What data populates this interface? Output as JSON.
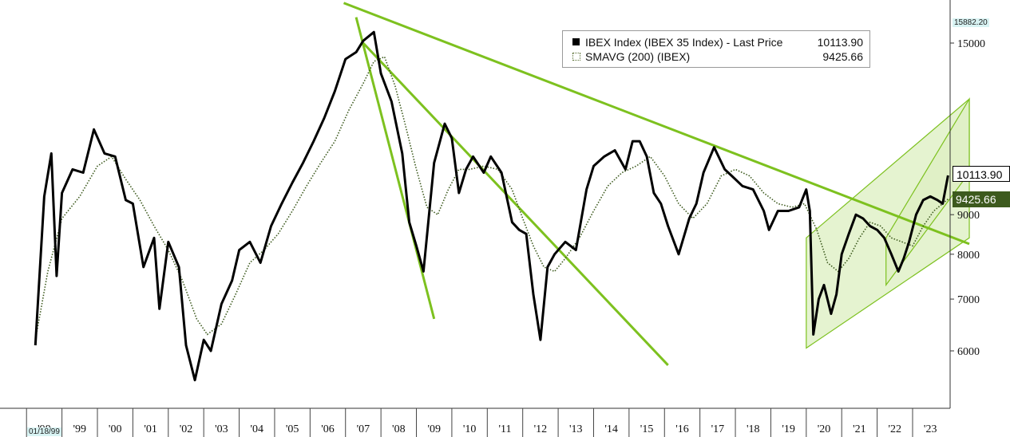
{
  "chart_data": {
    "type": "line",
    "title": "",
    "xlabel": "",
    "ylabel": "",
    "ylim": [
      5200,
      16500
    ],
    "y_scale": "log",
    "xlim": [
      1998.2,
      2024.6
    ],
    "y_ticks": [
      6000,
      7000,
      8000,
      9000,
      15000
    ],
    "y_tick_labels": [
      "6000",
      "7000",
      "8000",
      "9000",
      "15000"
    ],
    "x_tick_labels": [
      "'98",
      "'99",
      "'00",
      "'01",
      "'02",
      "'03",
      "'04",
      "'05",
      "'06",
      "'07",
      "'08",
      "'09",
      "'10",
      "'11",
      "'12",
      "'13",
      "'14",
      "'15",
      "'16",
      "'17",
      "'18",
      "'19",
      "'20",
      "'21",
      "'22",
      "'23"
    ],
    "x_tick_years": [
      1998,
      1999,
      2000,
      2001,
      2002,
      2003,
      2004,
      2005,
      2006,
      2007,
      2008,
      2009,
      2010,
      2011,
      2012,
      2013,
      2014,
      2015,
      2016,
      2017,
      2018,
      2019,
      2020,
      2021,
      2022,
      2023
    ],
    "grid": false,
    "legend_position": "top-right",
    "series": [
      {
        "name": "IBEX Index (IBEX 35 Index) - Last Price",
        "last_value": "10113.90",
        "color": "#000000",
        "style": "solid",
        "x": [
          1998.25,
          1998.5,
          1998.7,
          1998.85,
          1999.0,
          1999.3,
          1999.6,
          1999.9,
          2000.2,
          2000.5,
          2000.8,
          2001.0,
          2001.3,
          2001.6,
          2001.75,
          2002.0,
          2002.3,
          2002.5,
          2002.75,
          2003.0,
          2003.2,
          2003.5,
          2003.8,
          2004.0,
          2004.3,
          2004.6,
          2004.9,
          2005.2,
          2005.5,
          2005.8,
          2006.1,
          2006.4,
          2006.7,
          2007.0,
          2007.3,
          2007.5,
          2007.8,
          2008.0,
          2008.3,
          2008.6,
          2008.8,
          2009.0,
          2009.2,
          2009.5,
          2009.8,
          2010.0,
          2010.2,
          2010.4,
          2010.6,
          2010.9,
          2011.1,
          2011.4,
          2011.7,
          2011.9,
          2012.1,
          2012.3,
          2012.5,
          2012.7,
          2012.9,
          2013.2,
          2013.5,
          2013.8,
          2014.0,
          2014.3,
          2014.6,
          2014.9,
          2015.1,
          2015.3,
          2015.5,
          2015.7,
          2015.9,
          2016.1,
          2016.4,
          2016.7,
          2016.9,
          2017.1,
          2017.4,
          2017.7,
          2017.9,
          2018.2,
          2018.5,
          2018.8,
          2018.95,
          2019.2,
          2019.5,
          2019.8,
          2020.0,
          2020.1,
          2020.2,
          2020.35,
          2020.5,
          2020.7,
          2020.85,
          2021.0,
          2021.2,
          2021.4,
          2021.6,
          2021.8,
          2022.0,
          2022.2,
          2022.4,
          2022.6,
          2022.75,
          2022.9,
          2023.1,
          2023.3,
          2023.5,
          2023.7,
          2023.85,
          2024.0
        ],
        "y": [
          6100,
          9500,
          10800,
          7500,
          9600,
          10300,
          10200,
          11600,
          10800,
          10700,
          9400,
          9300,
          7700,
          8400,
          6800,
          8300,
          7700,
          6100,
          5500,
          6200,
          6000,
          6900,
          7400,
          8100,
          8300,
          7800,
          8700,
          9300,
          9900,
          10500,
          11200,
          12000,
          13000,
          14300,
          14600,
          15100,
          15500,
          13700,
          12600,
          10800,
          8800,
          8200,
          7600,
          10500,
          11800,
          11300,
          9600,
          10300,
          10700,
          10200,
          10700,
          10200,
          8800,
          8600,
          8500,
          7100,
          6200,
          7700,
          8000,
          8300,
          8100,
          9700,
          10400,
          10700,
          10900,
          10300,
          11200,
          11200,
          10700,
          9600,
          9300,
          8700,
          8000,
          8900,
          9300,
          10200,
          11000,
          10300,
          10100,
          9800,
          9700,
          9100,
          8600,
          9100,
          9100,
          9200,
          9700,
          9100,
          6300,
          7000,
          7300,
          6700,
          7100,
          8000,
          8500,
          9000,
          8900,
          8700,
          8600,
          8400,
          8000,
          7600,
          7900,
          8300,
          9000,
          9400,
          9500,
          9400,
          9300,
          10113.9
        ]
      },
      {
        "name": "SMAVG (200) (IBEX)",
        "last_value": "9425.66",
        "color": "#3d5a1e",
        "style": "dotted",
        "x": [
          1998.25,
          1998.6,
          1999.0,
          1999.5,
          2000.0,
          2000.4,
          2000.8,
          2001.2,
          2001.6,
          2002.0,
          2002.4,
          2002.8,
          2003.1,
          2003.5,
          2003.9,
          2004.3,
          2004.7,
          2005.1,
          2005.5,
          2005.9,
          2006.3,
          2006.7,
          2007.1,
          2007.5,
          2007.8,
          2008.1,
          2008.4,
          2008.7,
          2009.0,
          2009.3,
          2009.6,
          2009.9,
          2010.2,
          2010.5,
          2010.9,
          2011.3,
          2011.7,
          2012.0,
          2012.3,
          2012.6,
          2012.9,
          2013.2,
          2013.6,
          2014.0,
          2014.4,
          2014.8,
          2015.2,
          2015.6,
          2016.0,
          2016.4,
          2016.8,
          2017.2,
          2017.6,
          2018.0,
          2018.4,
          2018.8,
          2019.2,
          2019.6,
          2019.95,
          2020.3,
          2020.6,
          2020.9,
          2021.2,
          2021.5,
          2021.8,
          2022.1,
          2022.4,
          2022.7,
          2023.0,
          2023.3,
          2023.6,
          2024.0
        ],
        "y": [
          6200,
          7600,
          8900,
          9500,
          10400,
          10700,
          10000,
          9400,
          8700,
          8100,
          7400,
          6600,
          6300,
          6500,
          7100,
          7800,
          8100,
          8500,
          9100,
          9800,
          10500,
          11200,
          12300,
          13300,
          14200,
          14400,
          13200,
          11700,
          10300,
          9200,
          9000,
          9700,
          10300,
          10300,
          10400,
          10300,
          9700,
          8900,
          8200,
          7700,
          7600,
          7900,
          8400,
          9100,
          9800,
          10200,
          10400,
          10700,
          10100,
          9300,
          8900,
          9300,
          10100,
          10300,
          10100,
          9600,
          9300,
          9200,
          9300,
          8600,
          7800,
          7600,
          7900,
          8400,
          8800,
          8700,
          8400,
          8300,
          8200,
          8700,
          9100,
          9425.66
        ]
      }
    ],
    "annotations": {
      "high_label": "15882.20",
      "start_date_label": "01/18/99"
    }
  },
  "legend": {
    "row1_name": "IBEX Index (IBEX 35 Index) - Last Price",
    "row1_value": "10113.90",
    "row2_name": "SMAVG (200) (IBEX)",
    "row2_value": "9425.66"
  },
  "last_labels": {
    "price": "10113.90",
    "sma": "9425.66"
  },
  "colors": {
    "price": "#000000",
    "sma": "#3d5a1e",
    "trendline": "#7dc11f",
    "channel_fill": "#dcefc0",
    "sma_label_bg": "#3d5a1e"
  }
}
